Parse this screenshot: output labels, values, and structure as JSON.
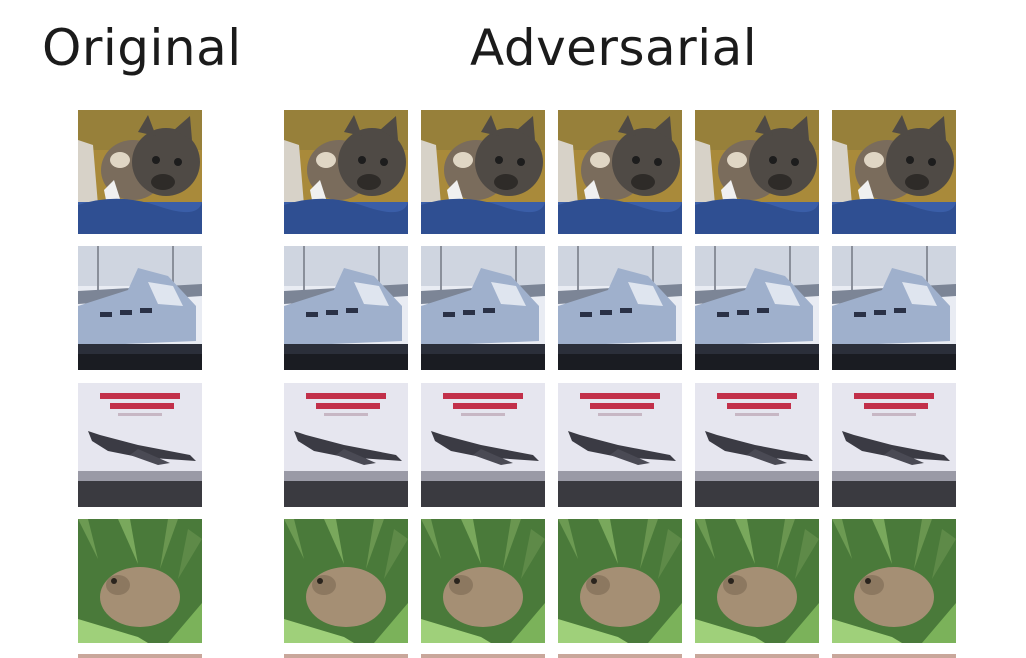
{
  "headings": {
    "original": "Original",
    "adversarial": "Adversarial"
  },
  "grid": {
    "rows": [
      {
        "subject": "cat",
        "columns": [
          "original",
          "adversarial",
          "adversarial",
          "adversarial",
          "adversarial",
          "adversarial"
        ]
      },
      {
        "subject": "ship",
        "columns": [
          "original",
          "adversarial",
          "adversarial",
          "adversarial",
          "adversarial",
          "adversarial"
        ]
      },
      {
        "subject": "airplane",
        "columns": [
          "original",
          "adversarial",
          "adversarial",
          "adversarial",
          "adversarial",
          "adversarial"
        ]
      },
      {
        "subject": "frog",
        "columns": [
          "original",
          "adversarial",
          "adversarial",
          "adversarial",
          "adversarial",
          "adversarial"
        ]
      }
    ],
    "partial_row_visible": true
  },
  "palette": {
    "cat_bg": "#a98a3a",
    "cat_fur": "#4f4a45",
    "cat_blanket": "#3a5ea8",
    "ship_sky": "#e9ecf3",
    "ship_hull": "#9fb0cc",
    "plane_bg": "#e6e6ef",
    "plane_body": "#3b3b44",
    "plane_text": "#c2304a",
    "frog_grass": "#4a7a3a",
    "frog_body": "#a58f74"
  }
}
